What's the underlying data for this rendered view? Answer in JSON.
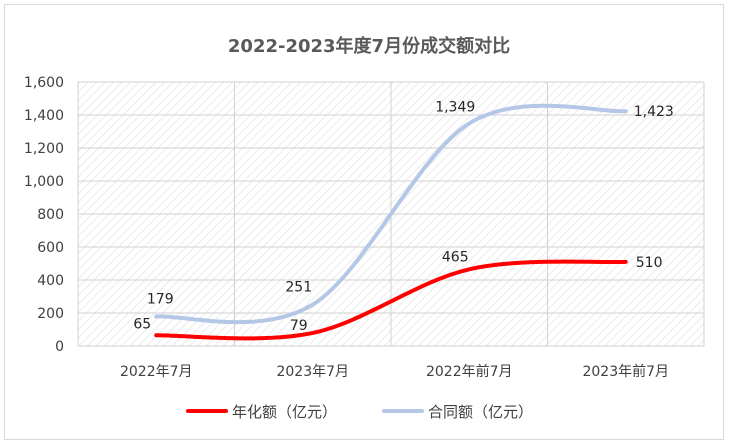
{
  "chart_data": {
    "type": "line",
    "title": "2022-2023年度7月份成交额对比",
    "categories": [
      "2022年7月",
      "2023年7月",
      "2022年前7月",
      "2023年前7月"
    ],
    "ylim": [
      0,
      1600
    ],
    "yticks": [
      0,
      200,
      400,
      600,
      800,
      1000,
      1200,
      1400,
      1600
    ],
    "ytick_labels": [
      "0",
      "200",
      "400",
      "600",
      "800",
      "1,000",
      "1,200",
      "1,400",
      "1,600"
    ],
    "series": [
      {
        "name": "年化额（亿元）",
        "values": [
          65,
          79,
          465,
          510
        ],
        "labels": [
          "65",
          "79",
          "465",
          "510"
        ],
        "color": "#ff0000"
      },
      {
        "name": "合同额（亿元）",
        "values": [
          179,
          251,
          1349,
          1423
        ],
        "labels": [
          "179",
          "251",
          "1,349",
          "1,423"
        ],
        "color": "#b4c7e7"
      }
    ],
    "grid": true,
    "legend": "bottom",
    "smooth": true
  }
}
